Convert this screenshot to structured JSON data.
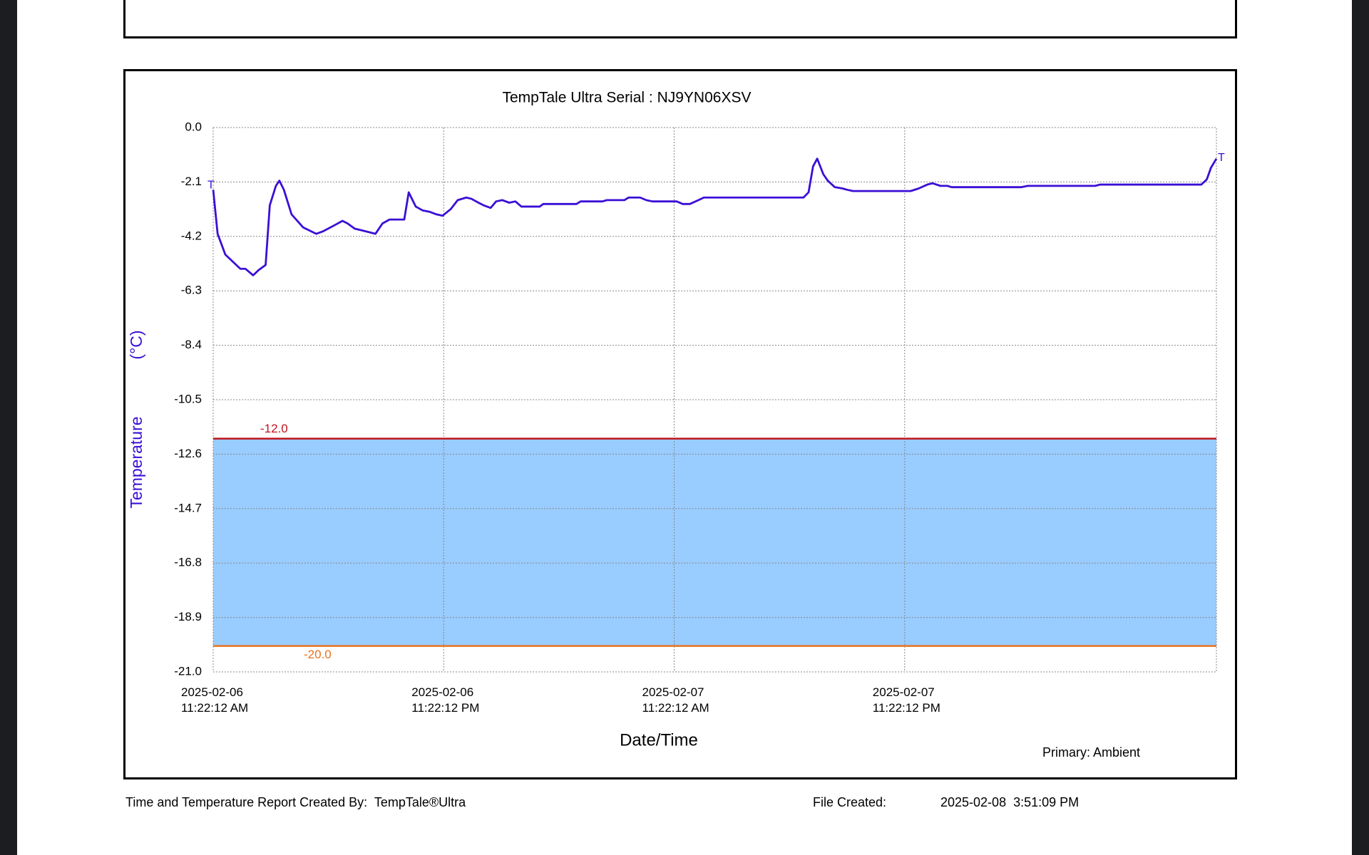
{
  "chart_data": {
    "type": "line",
    "title": "TempTale Ultra  Serial : NJ9YN06XSV",
    "y_label": "Temperature",
    "y_unit": "(°C)",
    "x_label": "Date/Time",
    "series_note": "Primary: Ambient",
    "start_marker": "T",
    "end_marker": "T",
    "color": "#3a0fd6",
    "x": [
      "2025-02-06T11:22:12",
      "2025-02-06T11:36",
      "2025-02-06T12:00",
      "2025-02-06T12:47",
      "2025-02-06T13:03",
      "2025-02-06T13:27",
      "2025-02-06T13:44",
      "2025-02-06T14:06",
      "2025-02-06T14:19",
      "2025-02-06T14:38",
      "2025-02-06T14:49",
      "2025-02-06T15:03",
      "2025-02-06T15:27",
      "2025-02-06T16:03",
      "2025-02-06T16:44",
      "2025-02-06T17:06",
      "2025-02-06T17:44",
      "2025-02-06T18:06",
      "2025-02-06T18:22",
      "2025-02-06T18:44",
      "2025-02-06T19:17",
      "2025-02-06T19:49",
      "2025-02-06T20:11",
      "2025-02-06T20:33",
      "2025-02-06T21:19",
      "2025-02-06T21:33",
      "2025-02-06T21:55",
      "2025-02-06T22:17",
      "2025-02-06T22:38",
      "2025-02-06T23:00",
      "2025-02-06T23:19",
      "2025-02-06T23:44",
      "2025-02-07T00:06",
      "2025-02-07T00:33",
      "2025-02-07T00:49",
      "2025-02-07T01:11",
      "2025-02-07T01:27",
      "2025-02-07T01:49",
      "2025-02-07T02:06",
      "2025-02-07T02:25",
      "2025-02-07T02:47",
      "2025-02-07T03:06",
      "2025-02-07T03:25",
      "2025-02-07T04:22",
      "2025-02-07T04:33",
      "2025-02-07T06:17",
      "2025-02-07T06:30",
      "2025-02-07T07:38",
      "2025-02-07T07:52",
      "2025-02-07T08:47",
      "2025-02-07T09:00",
      "2025-02-07T09:36",
      "2025-02-07T09:55",
      "2025-02-07T10:14",
      "2025-02-07T11:30",
      "2025-02-07T11:49",
      "2025-02-07T12:11",
      "2025-02-07T12:38",
      "2025-02-07T12:55",
      "2025-02-07T18:06",
      "2025-02-07T18:22",
      "2025-02-07T18:36",
      "2025-02-07T18:49",
      "2025-02-07T19:08",
      "2025-02-07T19:22",
      "2025-02-07T19:44",
      "2025-02-07T20:08",
      "2025-02-07T20:22",
      "2025-02-07T20:41",
      "2025-02-07T23:41",
      "2025-02-08T00:06",
      "2025-02-08T00:33",
      "2025-02-08T00:49",
      "2025-02-08T01:14",
      "2025-02-08T01:36",
      "2025-02-08T01:49",
      "2025-02-08T05:27",
      "2025-02-08T05:47",
      "2025-02-08T09:17",
      "2025-02-08T09:33",
      "2025-02-08T14:49",
      "2025-02-08T15:06",
      "2025-02-08T15:19",
      "2025-02-08T15:36"
    ],
    "values": [
      -2.4,
      -4.1,
      -4.9,
      -5.45,
      -5.45,
      -5.7,
      -5.5,
      -5.3,
      -3.0,
      -2.25,
      -2.05,
      -2.4,
      -3.35,
      -3.85,
      -4.1,
      -4.0,
      -3.75,
      -3.6,
      -3.7,
      -3.9,
      -4.0,
      -4.1,
      -3.7,
      -3.55,
      -3.55,
      -2.5,
      -3.05,
      -3.2,
      -3.25,
      -3.35,
      -3.4,
      -3.15,
      -2.8,
      -2.7,
      -2.75,
      -2.9,
      -3.0,
      -3.1,
      -2.85,
      -2.8,
      -2.9,
      -2.85,
      -3.05,
      -3.05,
      -2.95,
      -2.95,
      -2.85,
      -2.85,
      -2.8,
      -2.8,
      -2.7,
      -2.7,
      -2.8,
      -2.85,
      -2.85,
      -2.95,
      -2.95,
      -2.8,
      -2.7,
      -2.7,
      -2.5,
      -1.5,
      -1.2,
      -1.8,
      -2.05,
      -2.3,
      -2.35,
      -2.4,
      -2.45,
      -2.45,
      -2.35,
      -2.2,
      -2.15,
      -2.25,
      -2.25,
      -2.3,
      -2.3,
      -2.25,
      -2.25,
      -2.2,
      -2.2,
      -2.0,
      -1.55,
      -1.2
    ],
    "xlim": [
      "2025-02-06T11:22:12",
      "2025-02-08T15:36"
    ],
    "xticks": [
      {
        "value": "2025-02-06T11:22:12",
        "label": "2025-02-06\n11:22:12 AM"
      },
      {
        "value": "2025-02-06T23:22:12",
        "label": "2025-02-06\n11:22:12 PM"
      },
      {
        "value": "2025-02-07T11:22:12",
        "label": "2025-02-07\n11:22:12 AM"
      },
      {
        "value": "2025-02-07T23:22:12",
        "label": "2025-02-07\n11:22:12 PM"
      }
    ],
    "ylim": [
      -21,
      0
    ],
    "yticks": [
      {
        "value": 0,
        "label": "0.0"
      },
      -2.1,
      -4.2,
      -6.3,
      -8.4,
      -10.5,
      -12.6,
      -14.7,
      -16.8,
      -18.9,
      {
        "value": -21,
        "label": "-21.0"
      }
    ],
    "thresholds": [
      {
        "value": -12,
        "label": "-12.0",
        "color": "#c0141c"
      },
      {
        "value": -20,
        "label": "-20.0",
        "color": "#e8741e"
      }
    ],
    "band_color": "#99ccff",
    "grid": true
  },
  "footer": {
    "created_by": "Time and Temperature Report Created By:  TempTale®Ultra",
    "file_created_label": "File Created:",
    "file_created": "2025-02-08  3:51:09 PM"
  }
}
